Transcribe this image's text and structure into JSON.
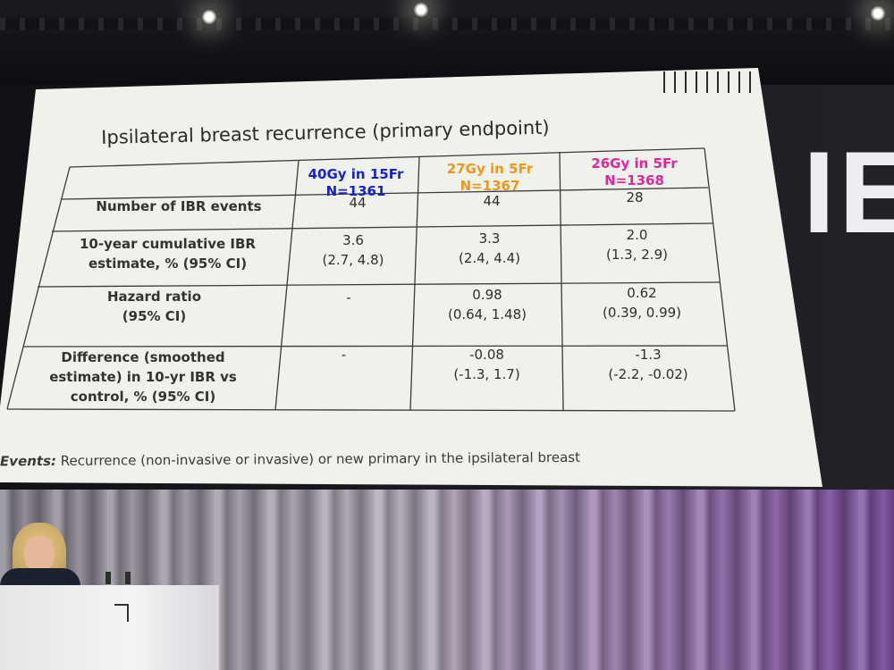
{
  "slide": {
    "title": "Ipsilateral breast recurrence (primary endpoint)",
    "columns": [
      {
        "line1": "40Gy in 15Fr",
        "line2": "N=1361",
        "color": "#1a1fd0"
      },
      {
        "line1": "27Gy in 5Fr",
        "line2": "N=1367",
        "color": "#f0961c"
      },
      {
        "line1": "26Gy in 5Fr",
        "line2": "N=1368",
        "color": "#e0269e"
      }
    ],
    "rows": [
      {
        "label": [
          "Number of IBR events"
        ],
        "values": [
          [
            "44"
          ],
          [
            "44"
          ],
          [
            "28"
          ]
        ]
      },
      {
        "label": [
          "10-year cumulative IBR",
          "estimate, % (95% CI)"
        ],
        "values": [
          [
            "3.6",
            "(2.7, 4.8)"
          ],
          [
            "3.3",
            "(2.4, 4.4)"
          ],
          [
            "2.0",
            "(1.3, 2.9)"
          ]
        ]
      },
      {
        "label": [
          "Hazard ratio",
          "(95% CI)"
        ],
        "values": [
          [
            "-"
          ],
          [
            "0.98",
            "(0.64, 1.48)"
          ],
          [
            "0.62",
            "(0.39, 0.99)"
          ]
        ]
      },
      {
        "label": [
          "Difference (smoothed",
          "estimate) in 10-yr IBR vs",
          "control, % (95% CI)"
        ],
        "values": [
          [
            "-"
          ],
          [
            "-0.08",
            "(-1.3, 1.7)"
          ],
          [
            "-1.3",
            "(-2.2, -0.02)"
          ]
        ]
      }
    ],
    "footnote_label": "Events:",
    "footnote_text": "Recurrence (non-invasive or invasive) or new primary in the ipsilateral breast"
  },
  "venue": {
    "backdrop_letters": "IES"
  }
}
